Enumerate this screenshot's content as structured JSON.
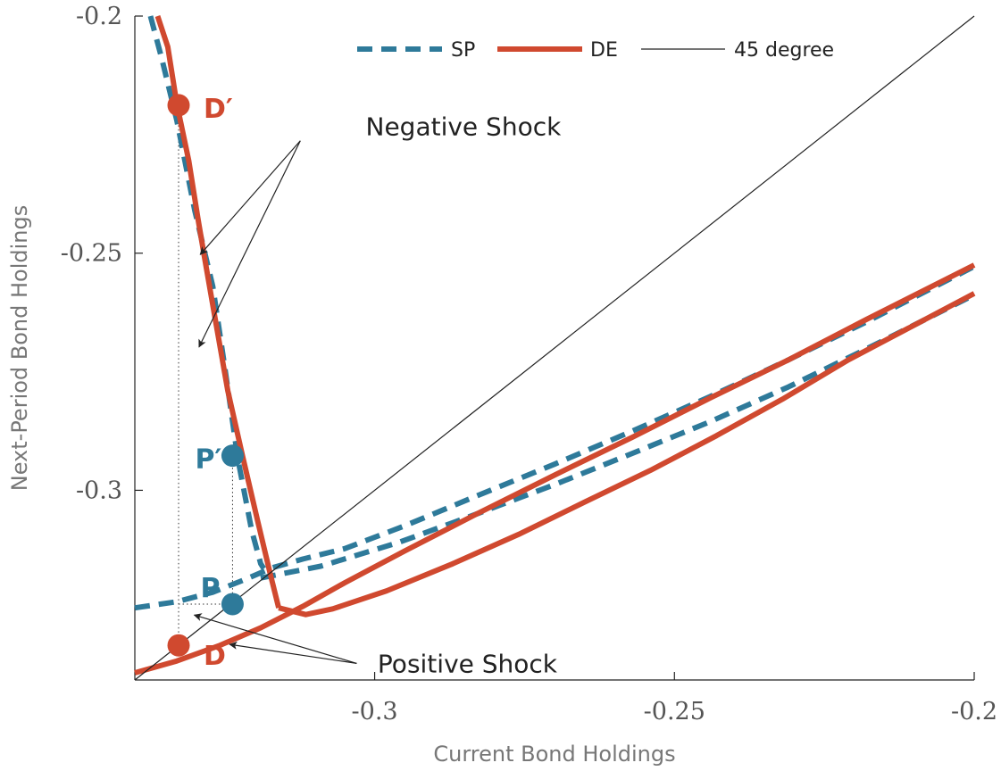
{
  "chart_data": {
    "type": "line",
    "xlabel": "Current Bond Holdings",
    "ylabel": "Next-Period Bond Holdings",
    "xlim": [
      -0.34,
      -0.2
    ],
    "ylim": [
      -0.34,
      -0.2
    ],
    "xticks": [
      -0.3,
      -0.25,
      -0.2
    ],
    "xtick_labels": [
      "-0.3",
      "-0.25",
      "-0.2"
    ],
    "yticks": [
      -0.2,
      -0.25,
      -0.3
    ],
    "ytick_labels": [
      "-0.2",
      "-0.25",
      "-0.3"
    ],
    "grid": false,
    "legend_position": "top",
    "colors": {
      "sp": "#2e7a9a",
      "de": "#d0492f",
      "deg45": "#222222"
    },
    "series": [
      {
        "name": "SP",
        "style": "dashed",
        "color": "#2e7a9a",
        "x": [
          -0.3374,
          -0.3355,
          -0.333,
          -0.33,
          -0.327,
          -0.325,
          -0.3228,
          -0.3205,
          -0.319,
          -0.3185
        ],
        "y": [
          -0.2,
          -0.209,
          -0.222,
          -0.241,
          -0.257,
          -0.274,
          -0.2935,
          -0.3085,
          -0.3155,
          -0.3165
        ]
      },
      {
        "name": "SP",
        "style": "dashed",
        "color": "#2e7a9a",
        "x": [
          -0.34,
          -0.333,
          -0.327,
          -0.322,
          -0.317,
          -0.312,
          -0.305,
          -0.295,
          -0.283,
          -0.27,
          -0.257,
          -0.244,
          -0.231,
          -0.218,
          -0.2
        ],
        "y": [
          -0.3248,
          -0.3235,
          -0.3215,
          -0.319,
          -0.3163,
          -0.3145,
          -0.3123,
          -0.3075,
          -0.3012,
          -0.2945,
          -0.2875,
          -0.2802,
          -0.2725,
          -0.2645,
          -0.2528
        ]
      },
      {
        "name": "SP",
        "style": "dashed",
        "color": "#2e7a9a",
        "x": [
          -0.319,
          -0.309,
          -0.296,
          -0.283,
          -0.27,
          -0.257,
          -0.244,
          -0.231,
          -0.218,
          -0.2
        ],
        "y": [
          -0.3185,
          -0.316,
          -0.311,
          -0.305,
          -0.2988,
          -0.2922,
          -0.2855,
          -0.2782,
          -0.2702,
          -0.2588
        ]
      },
      {
        "name": "DE",
        "style": "solid",
        "color": "#d0492f",
        "x": [
          -0.3362,
          -0.3345,
          -0.333,
          -0.331,
          -0.3295,
          -0.3283,
          -0.3265,
          -0.3245,
          -0.322,
          -0.3195,
          -0.3175,
          -0.316
        ],
        "y": [
          -0.2,
          -0.2065,
          -0.2185,
          -0.2305,
          -0.2425,
          -0.2515,
          -0.2645,
          -0.279,
          -0.293,
          -0.3065,
          -0.3172,
          -0.3248
        ]
      },
      {
        "name": "DE",
        "style": "solid",
        "color": "#d0492f",
        "x": [
          -0.34,
          -0.333,
          -0.326,
          -0.319,
          -0.312,
          -0.305,
          -0.295,
          -0.283,
          -0.27,
          -0.257,
          -0.244,
          -0.231,
          -0.218,
          -0.2
        ],
        "y": [
          -0.3385,
          -0.336,
          -0.3328,
          -0.329,
          -0.3245,
          -0.3195,
          -0.3128,
          -0.305,
          -0.2968,
          -0.2888,
          -0.2805,
          -0.2725,
          -0.264,
          -0.2525
        ]
      },
      {
        "name": "DE",
        "style": "solid",
        "color": "#d0492f",
        "x": [
          -0.316,
          -0.3115,
          -0.307,
          -0.298,
          -0.287,
          -0.276,
          -0.265,
          -0.254,
          -0.243,
          -0.232,
          -0.221,
          -0.2
        ],
        "y": [
          -0.3248,
          -0.3262,
          -0.325,
          -0.3212,
          -0.3155,
          -0.3093,
          -0.3025,
          -0.2958,
          -0.2885,
          -0.2808,
          -0.2725,
          -0.2585
        ]
      },
      {
        "name": "45 degree",
        "style": "solid-thin",
        "color": "#222222",
        "x": [
          -0.34,
          -0.2
        ],
        "y": [
          -0.34,
          -0.2
        ]
      }
    ],
    "legend": [
      {
        "label": "SP",
        "style": "dashed",
        "color": "#2e7a9a"
      },
      {
        "label": "DE",
        "style": "solid",
        "color": "#d0492f"
      },
      {
        "label": "45 degree",
        "style": "solid-thin",
        "color": "#222222"
      }
    ],
    "points": [
      {
        "label": "D′",
        "x": -0.3327,
        "y": -0.2188,
        "color": "#d0492f"
      },
      {
        "label": "P′",
        "x": -0.3237,
        "y": -0.2927,
        "color": "#2e7a9a"
      },
      {
        "label": "P",
        "x": -0.3237,
        "y": -0.324,
        "color": "#2e7a9a"
      },
      {
        "label": "D",
        "x": -0.3327,
        "y": -0.3327,
        "color": "#d0492f"
      }
    ],
    "annotations": [
      {
        "text": "Negative Shock",
        "x": -0.3015,
        "y": -0.2232
      },
      {
        "text": "Positive Shock",
        "x": -0.2995,
        "y": -0.3365
      }
    ],
    "arrows": [
      {
        "from": [
          -0.3124,
          -0.2263
        ],
        "to": [
          -0.3291,
          -0.2503
        ]
      },
      {
        "from": [
          -0.3124,
          -0.2263
        ],
        "to": [
          -0.3293,
          -0.2698
        ]
      },
      {
        "from": [
          -0.303,
          -0.3365
        ],
        "to": [
          -0.3301,
          -0.3263
        ]
      },
      {
        "from": [
          -0.303,
          -0.3365
        ],
        "to": [
          -0.3242,
          -0.3325
        ]
      }
    ],
    "guides": [
      {
        "x": -0.3327,
        "y0": -0.2188,
        "y1": -0.3327
      },
      {
        "x": -0.3237,
        "y0": -0.2927,
        "y1": -0.324
      }
    ],
    "hguide": {
      "y": -0.324,
      "x0": -0.3327,
      "x1": -0.3237
    }
  }
}
